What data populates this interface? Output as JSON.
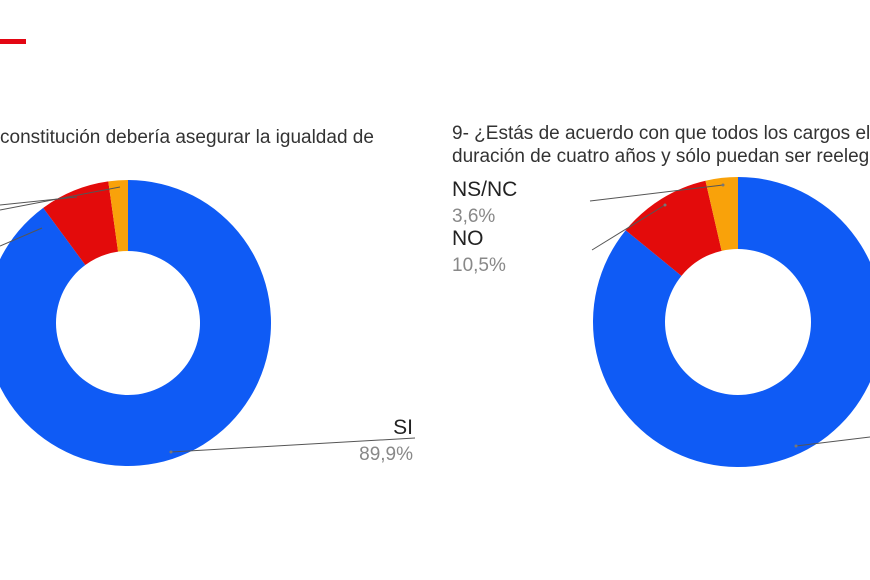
{
  "chart_data": [
    {
      "type": "pie",
      "donut": true,
      "title": "constitución debería asegurar la igualdad de",
      "slices": [
        {
          "label": "SI",
          "value": 89.9,
          "display": "89,9%",
          "color": "#0f5bf5"
        },
        {
          "label": "",
          "value": 7.9,
          "display": "",
          "color": "#e30b0b"
        },
        {
          "label": "",
          "value": 2.2,
          "display": "",
          "color": "#f9a20a"
        }
      ]
    },
    {
      "type": "pie",
      "donut": true,
      "title_lines": [
        "9- ¿Estás de acuerdo con que todos los cargos ele",
        "duración de cuatro años y sólo puedan ser reelegi"
      ],
      "slices": [
        {
          "label": "",
          "value": 85.9,
          "display": "",
          "color": "#0f5bf5"
        },
        {
          "label": "NO",
          "value": 10.5,
          "display": "10,5%",
          "color": "#e30b0b"
        },
        {
          "label": "NS/NC",
          "value": 3.6,
          "display": "3,6%",
          "color": "#f9a20a"
        }
      ]
    }
  ],
  "accent_color": "#e30613"
}
